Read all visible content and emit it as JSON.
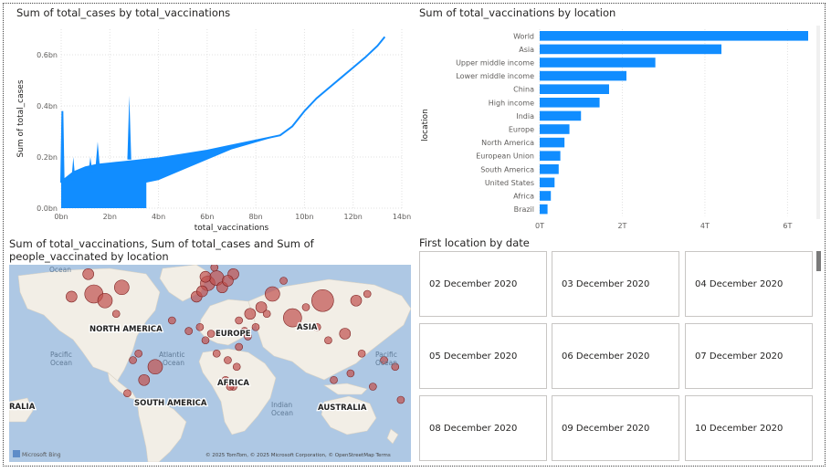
{
  "visuals": {
    "line": {
      "title": "Sum of total_cases by total_vaccinations",
      "xlabel": "total_vaccinations",
      "ylabel": "Sum of total_cases",
      "xticks": [
        "0bn",
        "2bn",
        "4bn",
        "6bn",
        "8bn",
        "10bn",
        "12bn",
        "14bn"
      ],
      "yticks": [
        "0.0bn",
        "0.2bn",
        "0.4bn",
        "0.6bn"
      ]
    },
    "bar": {
      "title": "Sum of total_vaccinations by location",
      "ylabel": "location",
      "xticks": [
        "0T",
        "2T",
        "4T",
        "6T"
      ]
    },
    "map": {
      "title": "Sum of total_vaccinations, Sum of total_cases and Sum of people_vaccinated by location",
      "labels": {
        "north_america": "NORTH AMERICA",
        "europe": "EUROPE",
        "asia": "ASIA",
        "africa": "AFRICA",
        "south_america": "SOUTH AMERICA",
        "australia": "AUSTRALIA",
        "ralia": "RALIA",
        "ocean_top": "Ocean"
      },
      "oceans": {
        "atlantic_1": "Atlantic",
        "atlantic_2": "Ocean",
        "pacific_l1": "Pacific",
        "pacific_l2": "Ocean",
        "pacific_r1": "Pacific",
        "pacific_r2": "Ocean",
        "indian_1": "Indian",
        "indian_2": "Ocean"
      },
      "attribution": "© 2025 TomTom, © 2025 Microsoft Corporation, © OpenStreetMap  Terms",
      "bing_logo": "Microsoft Bing",
      "bubble_color": "#c0504d"
    },
    "cards": {
      "title": "First location by date",
      "items": [
        "02 December 2020",
        "03 December 2020",
        "04 December 2020",
        "05 December 2020",
        "06 December 2020",
        "07 December 2020",
        "08 December 2020",
        "09 December 2020",
        "10 December 2020"
      ]
    }
  },
  "chart_data": [
    {
      "type": "area",
      "title": "Sum of total_cases by total_vaccinations",
      "xlabel": "total_vaccinations",
      "ylabel": "Sum of total_cases",
      "xlim": [
        0,
        14
      ],
      "ylim": [
        0,
        0.7
      ],
      "units": "bn",
      "color": "#118dff",
      "series": [
        {
          "x": [
            0.0,
            0.05,
            0.1,
            0.5,
            1.0,
            1.5,
            2.0,
            2.5,
            3.0,
            3.5,
            4.0,
            5.0,
            6.0,
            7.0,
            8.0,
            9.0,
            9.5,
            10.0,
            10.5,
            11.0,
            11.5,
            12.0,
            12.5,
            13.0,
            13.3
          ],
          "y": [
            0.1,
            0.38,
            0.11,
            0.14,
            0.16,
            0.17,
            0.175,
            0.18,
            0.185,
            0.19,
            0.195,
            0.21,
            0.225,
            0.245,
            0.265,
            0.285,
            0.32,
            0.38,
            0.43,
            0.47,
            0.51,
            0.55,
            0.59,
            0.635,
            0.67
          ]
        }
      ],
      "grid": true
    },
    {
      "type": "bar",
      "orientation": "horizontal",
      "title": "Sum of total_vaccinations by location",
      "ylabel": "location",
      "units": "T",
      "xlim": [
        0,
        6.5
      ],
      "color": "#118dff",
      "categories": [
        "World",
        "Asia",
        "Upper middle income",
        "Lower middle income",
        "China",
        "High income",
        "India",
        "Europe",
        "North America",
        "European Union",
        "South America",
        "United States",
        "Africa",
        "Brazil"
      ],
      "values": [
        6.5,
        4.4,
        2.8,
        2.1,
        1.68,
        1.45,
        1.0,
        0.72,
        0.6,
        0.5,
        0.46,
        0.36,
        0.27,
        0.19
      ]
    },
    {
      "type": "scatter",
      "title": "Sum of total_vaccinations, Sum of total_cases and Sum of people_vaccinated by location",
      "series": [
        {
          "lon": [
            -100,
            -90,
            -105,
            -75,
            -120,
            -80,
            2,
            10,
            15,
            25,
            0,
            8,
            20,
            105,
            78,
            40,
            50,
            60,
            70,
            35,
            30,
            20,
            10,
            -5,
            18,
            25,
            115,
            135,
            145,
            150,
            -45,
            -55,
            -65,
            -70,
            -60,
            125,
            100,
            110,
            140,
            130,
            -30,
            -15,
            45,
            55,
            90,
            170,
            160,
            175,
            0,
            5,
            30,
            38,
            28,
            22,
            -8,
            -3
          ],
          "lat": [
            40,
            35,
            55,
            45,
            38,
            25,
            48,
            52,
            45,
            55,
            53,
            60,
            50,
            35,
            22,
            25,
            30,
            40,
            50,
            12,
            0,
            -10,
            -5,
            15,
            -25,
            -30,
            -25,
            35,
            40,
            -30,
            -15,
            -25,
            -10,
            -35,
            -5,
            10,
            15,
            5,
            -5,
            -20,
            20,
            12,
            15,
            25,
            30,
            -15,
            -10,
            -40,
            5,
            10,
            20,
            8,
            -15,
            -30,
            38,
            42
          ],
          "size_rel": [
            5,
            4,
            3,
            4,
            3,
            2,
            4,
            4,
            3,
            3,
            3,
            2,
            3,
            6,
            5,
            3,
            3,
            4,
            2,
            2,
            2,
            2,
            2,
            2,
            2,
            2,
            2,
            3,
            2,
            2,
            4,
            3,
            2,
            2,
            2,
            3,
            2,
            2,
            2,
            2,
            2,
            2,
            2,
            2,
            2,
            2,
            2,
            2,
            2,
            2,
            2,
            2,
            2,
            2,
            3,
            3
          ]
        }
      ]
    }
  ]
}
